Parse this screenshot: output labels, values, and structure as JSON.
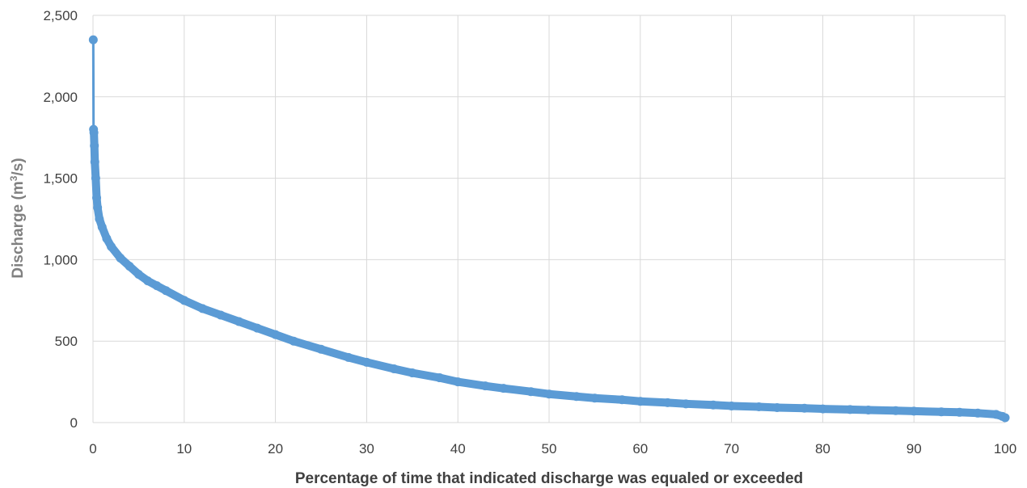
{
  "chart_data": {
    "type": "line",
    "xlabel": "Percentage of time that indicated discharge was equaled or exceeded",
    "ylabel_main": "Discharge (m",
    "ylabel_sup": "3",
    "ylabel_end": "/s)",
    "xlim": [
      0,
      100
    ],
    "ylim": [
      0,
      2500
    ],
    "x_ticks": [
      "0",
      "10",
      "20",
      "30",
      "40",
      "50",
      "60",
      "70",
      "80",
      "90",
      "100"
    ],
    "y_ticks": [
      "0",
      "500",
      "1,000",
      "1,500",
      "2,000",
      "2,500"
    ],
    "x_tick_values": [
      0,
      10,
      20,
      30,
      40,
      50,
      60,
      70,
      80,
      90,
      100
    ],
    "y_tick_values": [
      0,
      500,
      1000,
      1500,
      2000,
      2500
    ],
    "grid": true,
    "series_color": "#5b9bd5",
    "series": [
      {
        "x": [
          0.03,
          0.06,
          0.1,
          0.15,
          0.2,
          0.3,
          0.4,
          0.5,
          0.7,
          1.0,
          1.5,
          2,
          3,
          4,
          5,
          6,
          7,
          8,
          10,
          12,
          14,
          16,
          18,
          20,
          22,
          25,
          28,
          30,
          33,
          35,
          38,
          40,
          43,
          45,
          48,
          50,
          53,
          55,
          58,
          60,
          63,
          65,
          68,
          70,
          73,
          75,
          78,
          80,
          83,
          85,
          88,
          90,
          93,
          95,
          97,
          99,
          99.7,
          100
        ],
        "values": [
          2350,
          1800,
          1780,
          1700,
          1600,
          1500,
          1380,
          1320,
          1250,
          1200,
          1130,
          1080,
          1010,
          960,
          910,
          870,
          840,
          810,
          750,
          700,
          660,
          620,
          580,
          540,
          500,
          450,
          400,
          370,
          330,
          305,
          275,
          250,
          225,
          210,
          190,
          175,
          160,
          150,
          140,
          130,
          122,
          115,
          108,
          102,
          97,
          92,
          88,
          84,
          80,
          77,
          73,
          70,
          66,
          63,
          58,
          50,
          38,
          30
        ]
      }
    ]
  }
}
